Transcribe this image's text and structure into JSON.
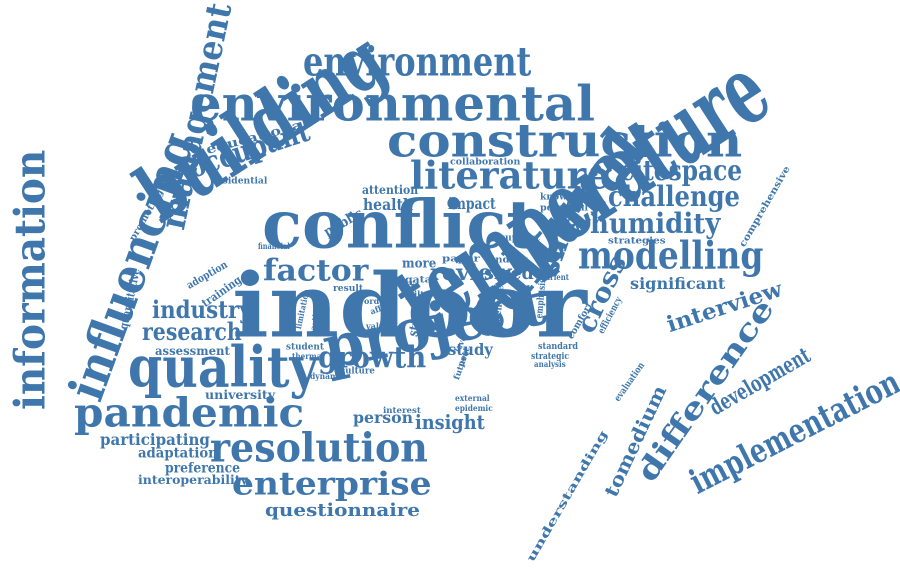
{
  "color": "#3f77ad",
  "words": [
    {
      "text": "indoor"
    },
    {
      "text": "temperature"
    },
    {
      "text": "building"
    },
    {
      "text": "conflict"
    },
    {
      "text": "cultural"
    },
    {
      "text": "project"
    },
    {
      "text": "construction"
    },
    {
      "text": "environmental"
    },
    {
      "text": "quality"
    },
    {
      "text": "resolution"
    },
    {
      "text": "pandemic"
    },
    {
      "text": "information"
    },
    {
      "text": "influencing"
    },
    {
      "text": "environment"
    },
    {
      "text": "literature"
    },
    {
      "text": "modelling"
    },
    {
      "text": "implementation"
    },
    {
      "text": "management"
    },
    {
      "text": "enterprise"
    },
    {
      "text": "occupant"
    },
    {
      "text": "factor"
    },
    {
      "text": "growth"
    },
    {
      "text": "humidity"
    },
    {
      "text": "challenge"
    },
    {
      "text": "citespace"
    },
    {
      "text": "industry"
    },
    {
      "text": "research"
    },
    {
      "text": "difference"
    },
    {
      "text": "development"
    },
    {
      "text": "interview"
    },
    {
      "text": "smes"
    },
    {
      "text": "cross"
    },
    {
      "text": "review"
    },
    {
      "text": "questionnaire"
    },
    {
      "text": "insight"
    },
    {
      "text": "person"
    },
    {
      "text": "significant"
    },
    {
      "text": "tomedium"
    },
    {
      "text": "understanding"
    },
    {
      "text": "sized"
    },
    {
      "text": "health"
    },
    {
      "text": "impact"
    },
    {
      "text": "study"
    },
    {
      "text": "participating"
    },
    {
      "text": "adaptation"
    },
    {
      "text": "preference"
    },
    {
      "text": "interoperability"
    },
    {
      "text": "university"
    },
    {
      "text": "assessment"
    },
    {
      "text": "educational"
    },
    {
      "text": "residential"
    },
    {
      "text": "public"
    },
    {
      "text": "attention"
    },
    {
      "text": "collaboration"
    },
    {
      "text": "knowledge"
    },
    {
      "text": "potential"
    },
    {
      "text": "strategies"
    },
    {
      "text": "comprehensive"
    },
    {
      "text": "training"
    },
    {
      "text": "adoption"
    },
    {
      "text": "quantitative"
    },
    {
      "text": "promoting"
    },
    {
      "text": "financial"
    },
    {
      "text": "more"
    },
    {
      "text": "qatar"
    },
    {
      "text": "paper"
    },
    {
      "text": "finding"
    },
    {
      "text": "support"
    },
    {
      "text": "nutrient"
    },
    {
      "text": "result"
    },
    {
      "text": "particular"
    },
    {
      "text": "limitation"
    },
    {
      "text": "student"
    },
    {
      "text": "thermal"
    },
    {
      "text": "dynamic"
    },
    {
      "text": "culture"
    },
    {
      "text": "interest"
    },
    {
      "text": "external"
    },
    {
      "text": "epidemic"
    },
    {
      "text": "strategic"
    },
    {
      "text": "standard"
    },
    {
      "text": "analysis"
    },
    {
      "text": "comfort"
    },
    {
      "text": "efficiency"
    },
    {
      "text": "evaluation"
    },
    {
      "text": "emphasis"
    },
    {
      "text": "identifies"
    },
    {
      "text": "future"
    },
    {
      "text": "post"
    },
    {
      "text": "level"
    },
    {
      "text": "studies"
    },
    {
      "text": "time"
    },
    {
      "text": "built"
    },
    {
      "text": "value"
    },
    {
      "text": "affect"
    },
    {
      "text": "order"
    }
  ]
}
